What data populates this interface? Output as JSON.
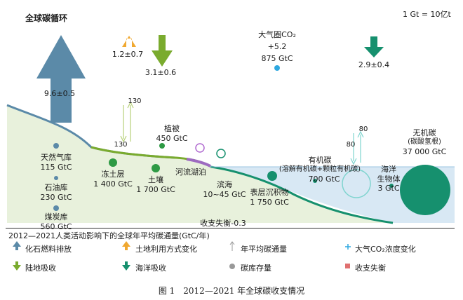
{
  "title": "全球碳循环",
  "unit_note": "1 Gt = 10亿t",
  "atmosphere": {
    "label": "大气圈CO₂",
    "change": "+5.2",
    "stock": "875 GtC"
  },
  "fluxes": {
    "fossil": "9.6±0.5",
    "landuse": "1.2±0.7",
    "land_sink": "3.1±0.6",
    "ocean_sink": "2.9±0.4",
    "veg_up": "130",
    "veg_down": "130",
    "ocean_up": "80",
    "ocean_down": "80"
  },
  "stocks": {
    "gas": [
      "天然气库",
      "115 GtC"
    ],
    "oil": [
      "石油库",
      "230 GtC"
    ],
    "coal": [
      "煤炭库",
      "560 GtC"
    ],
    "permafrost": [
      "冻土层",
      "1 400 GtC"
    ],
    "soil": [
      "土壤",
      "1 700 GtC"
    ],
    "vegetation": [
      "植被",
      "450 GtC"
    ],
    "rivers": "河流湖泊",
    "coastal": [
      "滨海",
      "10~45 GtC"
    ],
    "sediment": [
      "表层沉积物",
      "1 750 GtC"
    ],
    "organic": [
      "有机碳",
      "(溶解有机碳+颗粒有机碳)",
      "700 GtC"
    ],
    "biota": [
      "海洋",
      "生物体",
      "3 GtC"
    ],
    "inorganic": [
      "无机碳",
      "(碳酸氢根)",
      "37 000 GtC"
    ]
  },
  "imbalance": "收支失衡-0.3",
  "legend": {
    "title": "2012—2021人类活动影响下的全球年平均碳通量(GtC/年)",
    "items": [
      "化石燃料排放",
      "土地利用方式变化",
      "年平均碳通量",
      "大气CO₂浓度变化",
      "陆地吸收",
      "海洋吸收",
      "碳库存量",
      "收支失衡"
    ]
  },
  "caption": "图 1　2012—2021 年全球碳收支情况",
  "colors": {
    "fossil": "#5b8aa8",
    "landuse": "#f0a830",
    "land": "#7aab2e",
    "ocean": "#16906e",
    "stock_green": "#2e9a44",
    "imbalance": "#e07070"
  }
}
